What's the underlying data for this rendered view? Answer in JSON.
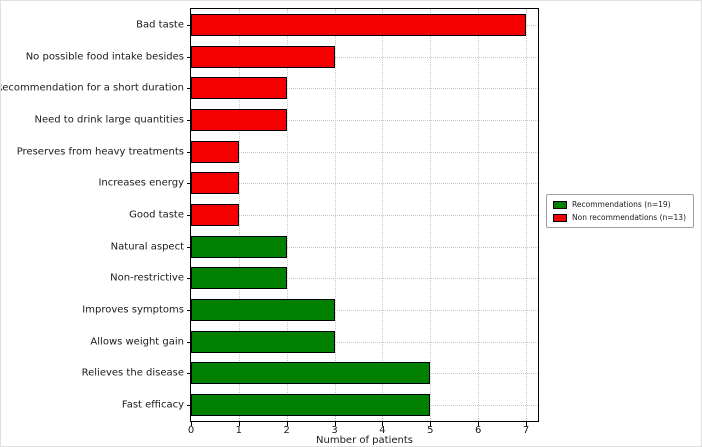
{
  "chart_data": {
    "type": "bar",
    "orientation": "horizontal",
    "title": "",
    "xlabel": "Number of patients",
    "ylabel": "",
    "xlim": [
      0,
      7.25
    ],
    "xticks": [
      0,
      1,
      2,
      3,
      4,
      5,
      6,
      7
    ],
    "grid": true,
    "legend_position": "center right",
    "series_colors": {
      "recommendations": "#008000",
      "non_recommendations": "#f40000"
    },
    "legend": [
      {
        "label": "Recommendations (n=19)",
        "series": "recommendations"
      },
      {
        "label": "Non recommendations (n=13)",
        "series": "non_recommendations"
      }
    ],
    "bars": [
      {
        "label": "Bad taste",
        "value": 7,
        "series": "non_recommendations"
      },
      {
        "label": "No possible food intake besides",
        "value": 3,
        "series": "non_recommendations"
      },
      {
        "label": "Recommendation for a short duration",
        "value": 2,
        "series": "non_recommendations"
      },
      {
        "label": "Need to drink large quantities",
        "value": 2,
        "series": "non_recommendations"
      },
      {
        "label": "Preserves from heavy treatments",
        "value": 1,
        "series": "non_recommendations"
      },
      {
        "label": "Increases energy",
        "value": 1,
        "series": "non_recommendations"
      },
      {
        "label": "Good taste",
        "value": 1,
        "series": "non_recommendations"
      },
      {
        "label": "Natural aspect",
        "value": 2,
        "series": "recommendations"
      },
      {
        "label": "Non-restrictive",
        "value": 2,
        "series": "recommendations"
      },
      {
        "label": "Improves symptoms",
        "value": 3,
        "series": "recommendations"
      },
      {
        "label": "Allows weight gain",
        "value": 3,
        "series": "recommendations"
      },
      {
        "label": "Relieves the disease",
        "value": 5,
        "series": "recommendations"
      },
      {
        "label": "Fast efficacy",
        "value": 5,
        "series": "recommendations"
      }
    ]
  }
}
